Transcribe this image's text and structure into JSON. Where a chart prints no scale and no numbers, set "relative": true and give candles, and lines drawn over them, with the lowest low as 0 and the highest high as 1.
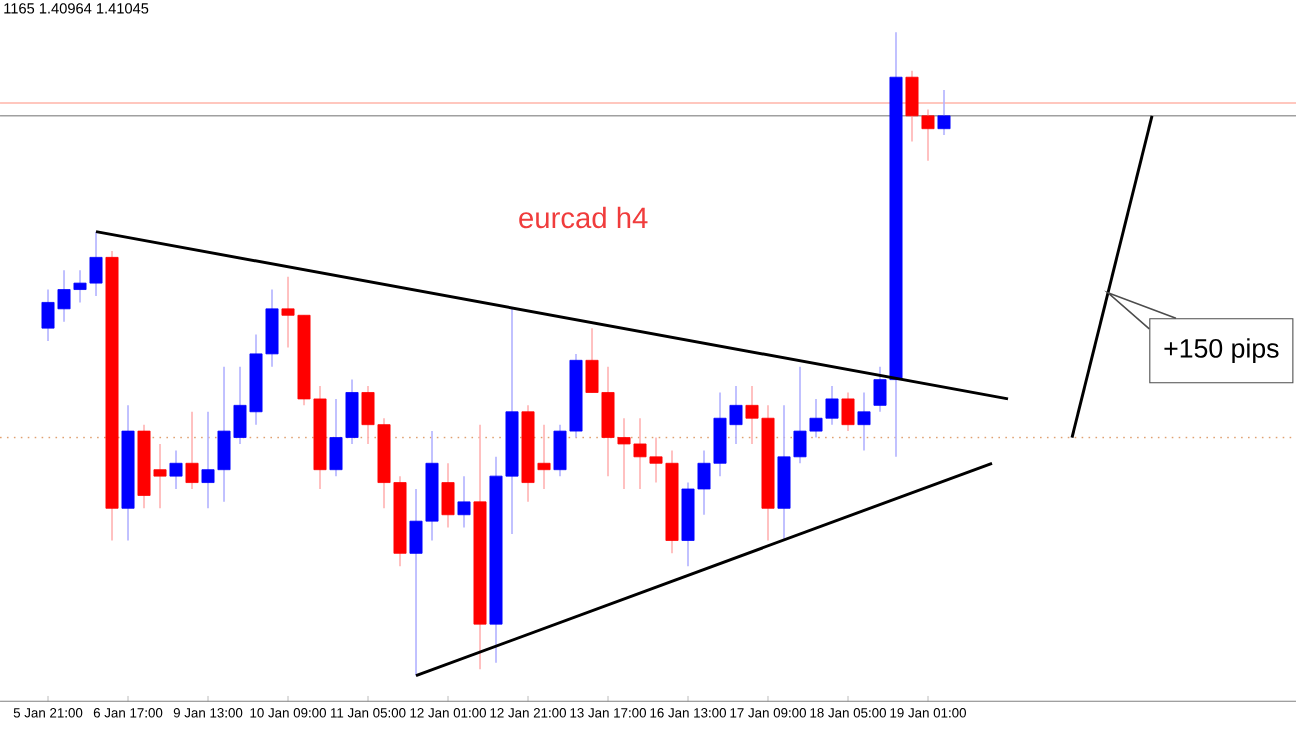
{
  "chart_data": {
    "type": "candlestick",
    "title": "eurcad h4",
    "relative": true,
    "categories": [
      "5 Jan 21:00",
      null,
      null,
      null,
      null,
      "6 Jan 17:00",
      null,
      null,
      null,
      null,
      "9 Jan 13:00",
      null,
      null,
      null,
      null,
      "10 Jan 09:00",
      null,
      null,
      null,
      null,
      "11 Jan 05:00",
      null,
      null,
      null,
      null,
      "12 Jan 01:00",
      null,
      null,
      null,
      null,
      "12 Jan 21:00",
      null,
      null,
      null,
      null,
      "13 Jan 17:00",
      null,
      null,
      null,
      null,
      "16 Jan 13:00",
      null,
      null,
      null,
      null,
      "17 Jan 09:00",
      null,
      null,
      null,
      null,
      "18 Jan 05:00",
      null,
      null,
      null,
      null,
      "19 Jan 01:00",
      null,
      null,
      null,
      null,
      null,
      null,
      null,
      null,
      null,
      null,
      null,
      null,
      null,
      null,
      null,
      null,
      null,
      null,
      null,
      null,
      null,
      null
    ],
    "ohlc": [
      [
        0.54,
        0.6,
        0.52,
        0.58
      ],
      [
        0.57,
        0.63,
        0.55,
        0.6
      ],
      [
        0.6,
        0.63,
        0.58,
        0.61
      ],
      [
        0.61,
        0.69,
        0.59,
        0.65
      ],
      [
        0.65,
        0.66,
        0.21,
        0.26
      ],
      [
        0.26,
        0.42,
        0.21,
        0.38
      ],
      [
        0.38,
        0.39,
        0.26,
        0.28
      ],
      [
        0.32,
        0.36,
        0.26,
        0.31
      ],
      [
        0.31,
        0.35,
        0.29,
        0.33
      ],
      [
        0.33,
        0.41,
        0.29,
        0.3
      ],
      [
        0.3,
        0.41,
        0.26,
        0.32
      ],
      [
        0.32,
        0.48,
        0.27,
        0.38
      ],
      [
        0.37,
        0.48,
        0.36,
        0.42
      ],
      [
        0.41,
        0.53,
        0.39,
        0.5
      ],
      [
        0.5,
        0.6,
        0.48,
        0.57
      ],
      [
        0.57,
        0.62,
        0.51,
        0.56
      ],
      [
        0.56,
        0.56,
        0.42,
        0.43
      ],
      [
        0.43,
        0.45,
        0.29,
        0.32
      ],
      [
        0.32,
        0.43,
        0.31,
        0.37
      ],
      [
        0.37,
        0.46,
        0.36,
        0.44
      ],
      [
        0.44,
        0.45,
        0.36,
        0.39
      ],
      [
        0.39,
        0.4,
        0.26,
        0.3
      ],
      [
        0.3,
        0.31,
        0.17,
        0.19
      ],
      [
        0.19,
        0.29,
        0.0,
        0.24
      ],
      [
        0.24,
        0.38,
        0.21,
        0.33
      ],
      [
        0.3,
        0.33,
        0.23,
        0.25
      ],
      [
        0.25,
        0.31,
        0.23,
        0.27
      ],
      [
        0.27,
        0.39,
        0.01,
        0.08
      ],
      [
        0.08,
        0.34,
        0.02,
        0.31
      ],
      [
        0.31,
        0.57,
        0.22,
        0.41
      ],
      [
        0.41,
        0.42,
        0.27,
        0.3
      ],
      [
        0.33,
        0.39,
        0.29,
        0.32
      ],
      [
        0.32,
        0.39,
        0.31,
        0.38
      ],
      [
        0.38,
        0.5,
        0.37,
        0.49
      ],
      [
        0.49,
        0.54,
        0.44,
        0.44
      ],
      [
        0.44,
        0.48,
        0.31,
        0.37
      ],
      [
        0.37,
        0.4,
        0.29,
        0.36
      ],
      [
        0.36,
        0.4,
        0.29,
        0.34
      ],
      [
        0.34,
        0.37,
        0.3,
        0.33
      ],
      [
        0.33,
        0.35,
        0.19,
        0.21
      ],
      [
        0.21,
        0.3,
        0.17,
        0.29
      ],
      [
        0.29,
        0.35,
        0.25,
        0.33
      ],
      [
        0.33,
        0.44,
        0.31,
        0.4
      ],
      [
        0.39,
        0.45,
        0.36,
        0.42
      ],
      [
        0.42,
        0.45,
        0.36,
        0.4
      ],
      [
        0.4,
        0.42,
        0.21,
        0.26
      ],
      [
        0.26,
        0.42,
        0.21,
        0.34
      ],
      [
        0.34,
        0.48,
        0.33,
        0.38
      ],
      [
        0.38,
        0.43,
        0.37,
        0.4
      ],
      [
        0.4,
        0.45,
        0.39,
        0.43
      ],
      [
        0.43,
        0.44,
        0.38,
        0.39
      ],
      [
        0.39,
        0.44,
        0.35,
        0.41
      ],
      [
        0.42,
        0.48,
        0.41,
        0.46
      ],
      [
        0.46,
        1.0,
        0.34,
        0.93
      ],
      [
        0.93,
        0.94,
        0.83,
        0.87
      ],
      [
        0.87,
        0.88,
        0.8,
        0.85
      ],
      [
        0.85,
        0.91,
        0.84,
        0.87
      ],
      null,
      null,
      null,
      null,
      null,
      null,
      null,
      null,
      null,
      null,
      null,
      null,
      null,
      null,
      null,
      null,
      null,
      null,
      null,
      null,
      null
    ],
    "colors": [
      "#0000ff",
      "#0000ff",
      "#0000ff",
      "#0000ff",
      "#ff0000",
      "#0000ff",
      "#ff0000",
      "#ff0000",
      "#0000ff",
      "#ff0000",
      "#0000ff",
      "#0000ff",
      "#0000ff",
      "#0000ff",
      "#0000ff",
      "#ff0000",
      "#ff0000",
      "#ff0000",
      "#0000ff",
      "#0000ff",
      "#ff0000",
      "#ff0000",
      "#ff0000",
      "#0000ff",
      "#0000ff",
      "#ff0000",
      "#0000ff",
      "#ff0000",
      "#0000ff",
      "#0000ff",
      "#ff0000",
      "#ff0000",
      "#0000ff",
      "#0000ff",
      "#ff0000",
      "#ff0000",
      "#ff0000",
      "#ff0000",
      "#ff0000",
      "#ff0000",
      "#0000ff",
      "#0000ff",
      "#0000ff",
      "#0000ff",
      "#ff0000",
      "#ff0000",
      "#0000ff",
      "#0000ff",
      "#0000ff",
      "#0000ff",
      "#ff0000",
      "#0000ff",
      "#0000ff",
      "#0000ff",
      "#ff0000",
      "#ff0000",
      "#0000ff",
      null,
      null,
      null,
      null,
      null,
      null,
      null,
      null,
      null,
      null,
      null,
      null,
      null,
      null,
      null,
      null,
      null,
      null,
      null,
      null,
      null
    ],
    "series": [
      {
        "type": "line",
        "color": "#000000",
        "values": [
          null,
          null,
          null,
          0.69,
          null,
          null,
          null,
          null,
          null,
          null,
          null,
          null,
          null,
          null,
          null,
          null,
          null,
          null,
          null,
          null,
          null,
          null,
          null,
          null,
          null,
          null,
          null,
          null,
          null,
          null,
          null,
          null,
          null,
          null,
          null,
          null,
          null,
          null,
          null,
          null,
          null,
          null,
          null,
          null,
          null,
          null,
          null,
          null,
          null,
          null,
          null,
          null,
          null,
          null,
          null,
          null,
          null,
          null,
          null,
          null,
          0.43,
          null,
          null,
          null,
          null,
          null,
          null,
          null,
          null,
          null,
          null,
          null,
          null,
          null,
          null,
          null,
          null,
          null
        ]
      },
      {
        "type": "line",
        "color": "#000000",
        "values": [
          null,
          null,
          null,
          null,
          null,
          null,
          null,
          null,
          null,
          null,
          null,
          null,
          null,
          null,
          null,
          null,
          null,
          null,
          null,
          null,
          null,
          null,
          null,
          0.0,
          null,
          null,
          null,
          null,
          null,
          null,
          null,
          null,
          null,
          null,
          null,
          null,
          null,
          null,
          null,
          null,
          null,
          null,
          null,
          null,
          null,
          null,
          null,
          null,
          null,
          null,
          null,
          null,
          null,
          null,
          null,
          null,
          null,
          null,
          null,
          0.33,
          null,
          null,
          null,
          null,
          null,
          null,
          null,
          null,
          null,
          null,
          null,
          null,
          null,
          null,
          null,
          null,
          null,
          null
        ]
      },
      {
        "type": "line",
        "color": "#000000",
        "values": [
          null,
          null,
          null,
          null,
          null,
          null,
          null,
          null,
          null,
          null,
          null,
          null,
          null,
          null,
          null,
          null,
          null,
          null,
          null,
          null,
          null,
          null,
          null,
          null,
          null,
          null,
          null,
          null,
          null,
          null,
          null,
          null,
          null,
          null,
          null,
          null,
          null,
          null,
          null,
          null,
          null,
          null,
          null,
          null,
          null,
          null,
          null,
          null,
          null,
          null,
          null,
          null,
          null,
          null,
          null,
          null,
          null,
          null,
          null,
          null,
          null,
          null,
          null,
          null,
          0.37,
          null,
          null,
          null,
          null,
          0.87,
          null,
          null,
          null,
          null,
          null,
          null,
          null,
          null
        ]
      }
    ],
    "ref_lines": [
      {
        "axis": "y",
        "value": 0.87,
        "color": "#a0a0a0",
        "line_style": "solid"
      },
      {
        "axis": "y",
        "value": 0.89,
        "color": "#ffb4a8",
        "line_style": "solid"
      },
      {
        "axis": "y",
        "value": 0.37,
        "color": "#e0a070",
        "line_style": "dotted"
      }
    ],
    "annotations": [
      "1165 1.40964 1.41045",
      "+150 pips"
    ],
    "grid": false
  }
}
